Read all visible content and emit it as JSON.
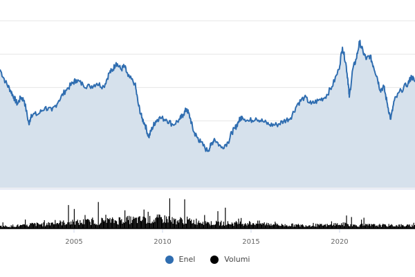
{
  "chart_data": {
    "type": "area",
    "title": "",
    "xlabel": "",
    "ylabel": "",
    "xlim": [
      2000.82,
      2024.26
    ],
    "ylim": [
      0,
      10
    ],
    "y_gridlines": [
      0,
      2,
      4,
      6,
      8,
      10
    ],
    "x_ticks": [
      {
        "value": 2005,
        "label": "2005"
      },
      {
        "value": 2010,
        "label": "2010"
      },
      {
        "value": 2015,
        "label": "2015"
      },
      {
        "value": 2020,
        "label": "2020"
      }
    ],
    "grid": true,
    "legend_placement": "bottom-center",
    "series": [
      {
        "name": "Enel",
        "color": "#2f6db0",
        "fill": "#d6e1ec",
        "points": [
          [
            2000.82,
            7.08
          ],
          [
            2001.13,
            6.34
          ],
          [
            2001.41,
            5.84
          ],
          [
            2001.6,
            5.42
          ],
          [
            2001.8,
            5.01
          ],
          [
            2002.0,
            5.42
          ],
          [
            2002.19,
            5.22
          ],
          [
            2002.46,
            3.77
          ],
          [
            2002.58,
            4.39
          ],
          [
            2002.97,
            4.39
          ],
          [
            2003.36,
            4.8
          ],
          [
            2003.75,
            4.6
          ],
          [
            2004.14,
            5.22
          ],
          [
            2004.53,
            5.84
          ],
          [
            2004.92,
            6.25
          ],
          [
            2005.12,
            6.46
          ],
          [
            2005.51,
            6.17
          ],
          [
            2005.9,
            6.05
          ],
          [
            2006.29,
            6.25
          ],
          [
            2006.68,
            6.05
          ],
          [
            2006.99,
            6.87
          ],
          [
            2007.19,
            7.08
          ],
          [
            2007.38,
            7.49
          ],
          [
            2007.66,
            7.08
          ],
          [
            2007.85,
            7.29
          ],
          [
            2008.05,
            6.67
          ],
          [
            2008.44,
            6.25
          ],
          [
            2008.63,
            5.01
          ],
          [
            2008.83,
            4.18
          ],
          [
            2009.02,
            3.77
          ],
          [
            2009.22,
            3.02
          ],
          [
            2009.41,
            3.56
          ],
          [
            2009.61,
            3.98
          ],
          [
            2009.8,
            4.18
          ],
          [
            2010.2,
            4.1
          ],
          [
            2010.59,
            3.77
          ],
          [
            2010.98,
            4.1
          ],
          [
            2011.17,
            4.39
          ],
          [
            2011.37,
            4.72
          ],
          [
            2011.56,
            4.18
          ],
          [
            2011.76,
            3.35
          ],
          [
            2011.95,
            3.02
          ],
          [
            2012.15,
            2.73
          ],
          [
            2012.54,
            2.19
          ],
          [
            2012.73,
            2.53
          ],
          [
            2012.93,
            2.94
          ],
          [
            2013.32,
            2.4
          ],
          [
            2013.71,
            2.73
          ],
          [
            2013.91,
            3.3
          ],
          [
            2014.1,
            3.56
          ],
          [
            2014.3,
            3.98
          ],
          [
            2014.49,
            4.27
          ],
          [
            2014.88,
            3.98
          ],
          [
            2015.27,
            4.18
          ],
          [
            2015.66,
            3.98
          ],
          [
            2016.05,
            3.77
          ],
          [
            2016.45,
            3.77
          ],
          [
            2016.84,
            3.98
          ],
          [
            2017.23,
            4.18
          ],
          [
            2017.62,
            5.01
          ],
          [
            2018.01,
            5.42
          ],
          [
            2018.4,
            5.01
          ],
          [
            2018.79,
            5.22
          ],
          [
            2019.18,
            5.42
          ],
          [
            2019.57,
            6.05
          ],
          [
            2019.96,
            7.08
          ],
          [
            2020.16,
            8.41
          ],
          [
            2020.35,
            7.49
          ],
          [
            2020.47,
            6.46
          ],
          [
            2020.55,
            5.42
          ],
          [
            2020.74,
            7.08
          ],
          [
            2020.94,
            7.7
          ],
          [
            2021.13,
            8.74
          ],
          [
            2021.33,
            8.12
          ],
          [
            2021.52,
            7.7
          ],
          [
            2021.72,
            7.91
          ],
          [
            2021.91,
            7.29
          ],
          [
            2022.11,
            6.67
          ],
          [
            2022.3,
            5.84
          ],
          [
            2022.5,
            6.05
          ],
          [
            2022.7,
            5.01
          ],
          [
            2022.89,
            4.1
          ],
          [
            2023.09,
            5.22
          ],
          [
            2023.48,
            5.84
          ],
          [
            2023.87,
            6.25
          ],
          [
            2024.07,
            6.67
          ],
          [
            2024.26,
            6.34
          ]
        ]
      },
      {
        "name": "Volumi",
        "color": "#000000",
        "type": "bar",
        "relative_level_by_year": [
          [
            2001,
            0.12
          ],
          [
            2002,
            0.15
          ],
          [
            2003,
            0.22
          ],
          [
            2004,
            0.3
          ],
          [
            2005,
            0.32
          ],
          [
            2006,
            0.35
          ],
          [
            2007,
            0.4
          ],
          [
            2008,
            0.45
          ],
          [
            2009,
            0.45
          ],
          [
            2010,
            0.5
          ],
          [
            2011,
            0.42
          ],
          [
            2012,
            0.38
          ],
          [
            2013,
            0.28
          ],
          [
            2014,
            0.27
          ],
          [
            2015,
            0.28
          ],
          [
            2016,
            0.25
          ],
          [
            2017,
            0.18
          ],
          [
            2018,
            0.17
          ],
          [
            2019,
            0.17
          ],
          [
            2020,
            0.22
          ],
          [
            2021,
            0.17
          ],
          [
            2022,
            0.17
          ],
          [
            2023,
            0.16
          ],
          [
            2024,
            0.15
          ]
        ]
      }
    ]
  },
  "legend": [
    {
      "label": "Enel",
      "color": "#2f6db0"
    },
    {
      "label": "Volumi",
      "color": "#000000"
    }
  ]
}
